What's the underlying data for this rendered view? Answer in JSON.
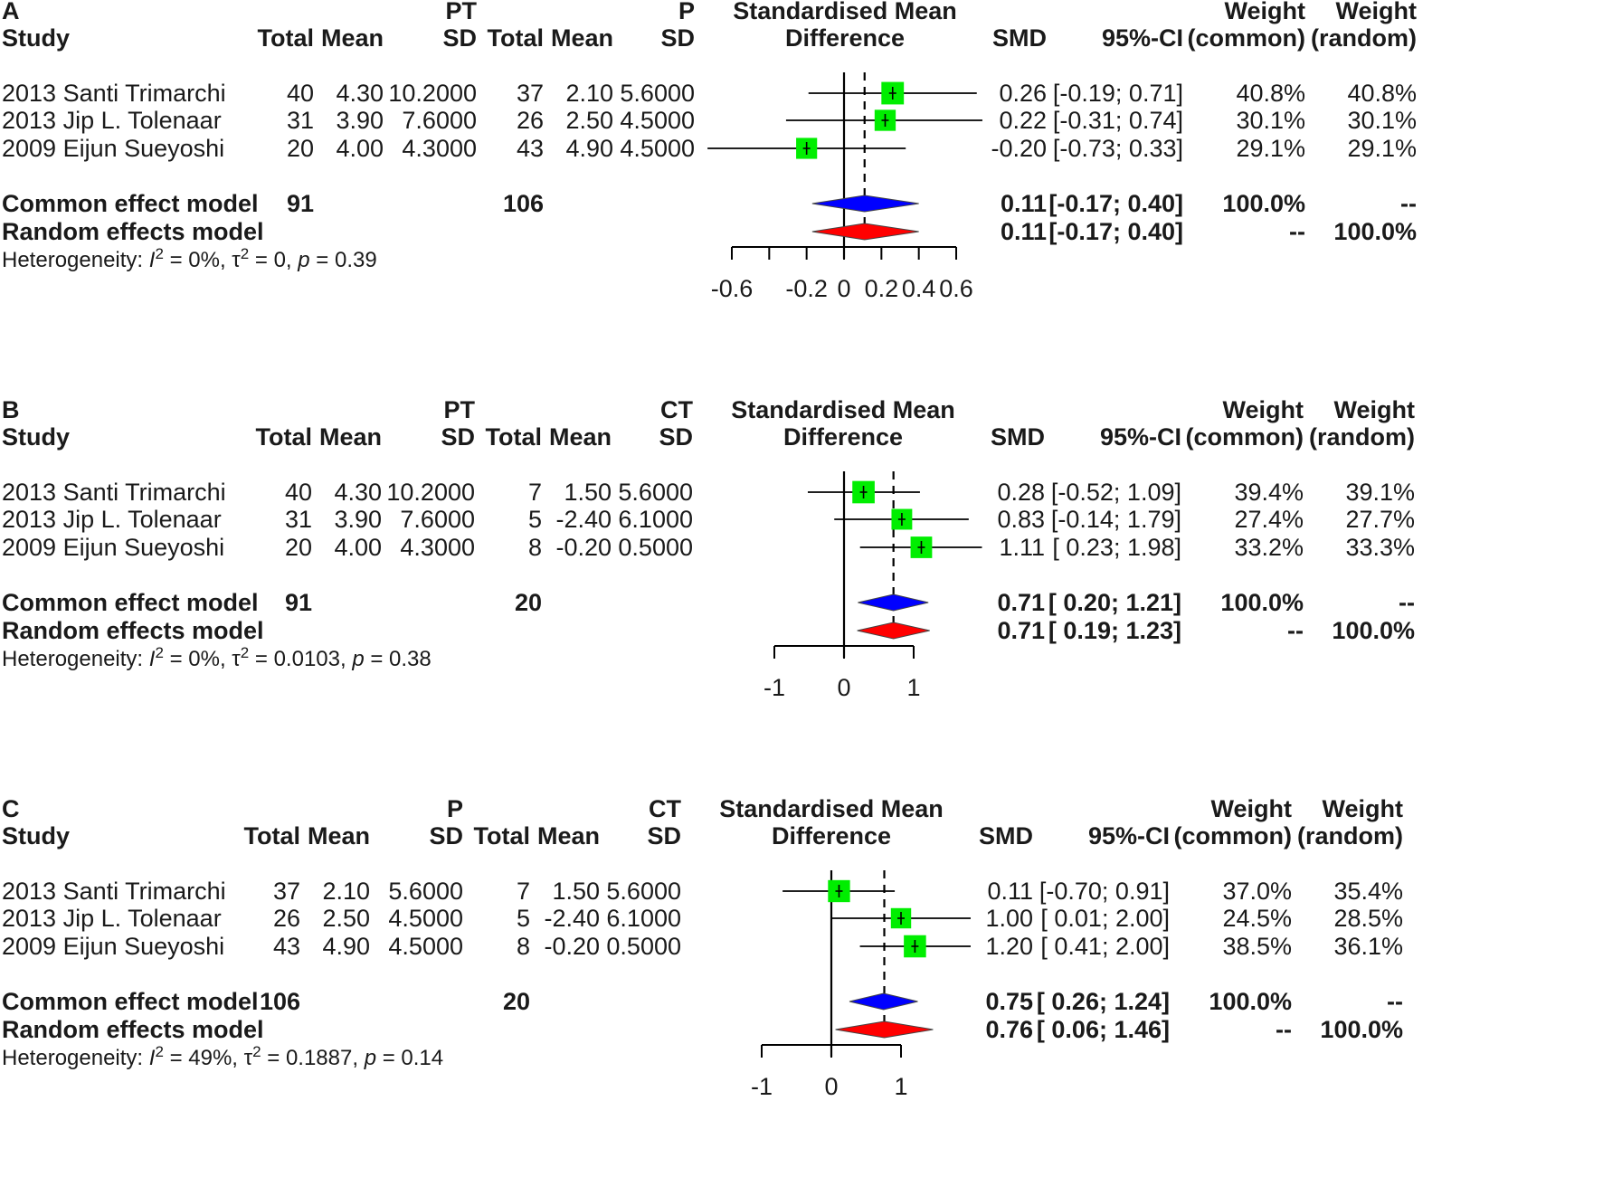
{
  "panels": [
    {
      "id": "A",
      "group1": "PT",
      "group2": "P",
      "headers": {
        "study": "Study",
        "total1": "Total",
        "mean1": "Mean",
        "sd1": "SD",
        "total2": "Total",
        "mean2": "Mean",
        "sd2": "SD",
        "smd_line1": "Standardised Mean",
        "smd_line2": "Difference",
        "smd": "SMD",
        "ci": "95%-CI",
        "w_common_1": "Weight",
        "w_common_2": "(common)",
        "w_random_1": "Weight",
        "w_random_2": "(random)"
      },
      "rows": [
        {
          "study": "2013 Santi Trimarchi",
          "total1": "40",
          "mean1": "4.30",
          "sd1": "10.2000",
          "total2": "37",
          "mean2": "2.10",
          "sd2": "5.6000",
          "smd": "0.26",
          "ci": "[-0.19; 0.71]",
          "w_common": "40.8%",
          "w_random": "40.8%"
        },
        {
          "study": "2013 Jip L. Tolenaar",
          "total1": "31",
          "mean1": "3.90",
          "sd1": "7.6000",
          "total2": "26",
          "mean2": "2.50",
          "sd2": "4.5000",
          "smd": "0.22",
          "ci": "[-0.31; 0.74]",
          "w_common": "30.1%",
          "w_random": "30.1%"
        },
        {
          "study": "2009 Eijun Sueyoshi",
          "total1": "20",
          "mean1": "4.00",
          "sd1": "4.3000",
          "total2": "43",
          "mean2": "4.90",
          "sd2": "4.5000",
          "smd": "-0.20",
          "ci": "[-0.73; 0.33]",
          "w_common": "29.1%",
          "w_random": "29.1%"
        }
      ],
      "common": {
        "label": "Common effect model",
        "total1": "91",
        "total2": "106",
        "smd": "0.11",
        "ci": "[-0.17; 0.40]",
        "w_common": "100.0%",
        "w_random": "--"
      },
      "random": {
        "label": "Random effects model",
        "smd": "0.11",
        "ci": "[-0.17; 0.40]",
        "w_common": "--",
        "w_random": "100.0%"
      },
      "het": {
        "prefix": "Heterogeneity: ",
        "I": "I",
        "I_exp": "2",
        "I_val": " = 0%, ",
        "tau": "τ",
        "tau_exp": "2",
        "tau_val": " = 0, ",
        "p": "p",
        "p_val": " = 0.39"
      }
    },
    {
      "id": "B",
      "group1": "PT",
      "group2": "CT",
      "headers": {
        "study": "Study",
        "total1": "Total",
        "mean1": "Mean",
        "sd1": "SD",
        "total2": "Total",
        "mean2": "Mean",
        "sd2": "SD",
        "smd_line1": "Standardised Mean",
        "smd_line2": "Difference",
        "smd": "SMD",
        "ci": "95%-CI",
        "w_common_1": "Weight",
        "w_common_2": "(common)",
        "w_random_1": "Weight",
        "w_random_2": "(random)"
      },
      "rows": [
        {
          "study": "2013 Santi Trimarchi",
          "total1": "40",
          "mean1": "4.30",
          "sd1": "10.2000",
          "total2": "7",
          "mean2": "1.50",
          "sd2": "5.6000",
          "smd": "0.28",
          "ci": "[-0.52; 1.09]",
          "w_common": "39.4%",
          "w_random": "39.1%"
        },
        {
          "study": "2013 Jip L. Tolenaar",
          "total1": "31",
          "mean1": "3.90",
          "sd1": "7.6000",
          "total2": "5",
          "mean2": "-2.40",
          "sd2": "6.1000",
          "smd": "0.83",
          "ci": "[-0.14; 1.79]",
          "w_common": "27.4%",
          "w_random": "27.7%"
        },
        {
          "study": "2009 Eijun Sueyoshi",
          "total1": "20",
          "mean1": "4.00",
          "sd1": "4.3000",
          "total2": "8",
          "mean2": "-0.20",
          "sd2": "0.5000",
          "smd": "1.11",
          "ci": "[ 0.23; 1.98]",
          "w_common": "33.2%",
          "w_random": "33.3%"
        }
      ],
      "common": {
        "label": "Common effect model",
        "total1": "91",
        "total2": "20",
        "smd": "0.71",
        "ci": "[ 0.20; 1.21]",
        "w_common": "100.0%",
        "w_random": "--"
      },
      "random": {
        "label": "Random effects model",
        "smd": "0.71",
        "ci": "[ 0.19; 1.23]",
        "w_common": "--",
        "w_random": "100.0%"
      },
      "het": {
        "prefix": "Heterogeneity: ",
        "I": "I",
        "I_exp": "2",
        "I_val": " = 0%, ",
        "tau": "τ",
        "tau_exp": "2",
        "tau_val": " = 0.0103, ",
        "p": "p",
        "p_val": " = 0.38"
      }
    },
    {
      "id": "C",
      "group1": "P",
      "group2": "CT",
      "headers": {
        "study": "Study",
        "total1": "Total",
        "mean1": "Mean",
        "sd1": "SD",
        "total2": "Total",
        "mean2": "Mean",
        "sd2": "SD",
        "smd_line1": "Standardised Mean",
        "smd_line2": "Difference",
        "smd": "SMD",
        "ci": "95%-CI",
        "w_common_1": "Weight",
        "w_common_2": "(common)",
        "w_random_1": "Weight",
        "w_random_2": "(random)"
      },
      "rows": [
        {
          "study": "2013 Santi Trimarchi",
          "total1": "37",
          "mean1": "2.10",
          "sd1": "5.6000",
          "total2": "7",
          "mean2": "1.50",
          "sd2": "5.6000",
          "smd": "0.11",
          "ci": "[-0.70; 0.91]",
          "w_common": "37.0%",
          "w_random": "35.4%"
        },
        {
          "study": "2013 Jip L. Tolenaar",
          "total1": "26",
          "mean1": "2.50",
          "sd1": "4.5000",
          "total2": "5",
          "mean2": "-2.40",
          "sd2": "6.1000",
          "smd": "1.00",
          "ci": "[ 0.01; 2.00]",
          "w_common": "24.5%",
          "w_random": "28.5%"
        },
        {
          "study": "2009 Eijun Sueyoshi",
          "total1": "43",
          "mean1": "4.90",
          "sd1": "4.5000",
          "total2": "8",
          "mean2": "-0.20",
          "sd2": "0.5000",
          "smd": "1.20",
          "ci": "[ 0.41; 2.00]",
          "w_common": "38.5%",
          "w_random": "36.1%"
        }
      ],
      "common": {
        "label": "Common effect model",
        "total1": "106",
        "total2": "20",
        "smd": "0.75",
        "ci": "[ 0.26; 1.24]",
        "w_common": "100.0%",
        "w_random": "--"
      },
      "random": {
        "label": "Random effects model",
        "smd": "0.76",
        "ci": "[ 0.06; 1.46]",
        "w_common": "--",
        "w_random": "100.0%"
      },
      "het": {
        "prefix": "Heterogeneity: ",
        "I": "I",
        "I_exp": "2",
        "I_val": " = 49%, ",
        "tau": "τ",
        "tau_exp": "2",
        "tau_val": " = 0.1887, ",
        "p": "p",
        "p_val": " = 0.14"
      }
    }
  ],
  "chart_data": [
    {
      "type": "forest",
      "panel": "A",
      "xlim": [
        -0.6,
        0.6
      ],
      "ticks": [
        -0.6,
        -0.4,
        -0.2,
        0,
        0.2,
        0.4,
        0.6
      ],
      "tick_labels": [
        "-0.6",
        "",
        "-0.2",
        "0",
        "0.2",
        "0.4",
        "0.6"
      ],
      "studies": [
        {
          "smd": 0.26,
          "lo": -0.19,
          "hi": 0.71,
          "weight": 40.8
        },
        {
          "smd": 0.22,
          "lo": -0.31,
          "hi": 0.74,
          "weight": 30.1
        },
        {
          "smd": -0.2,
          "lo": -0.73,
          "hi": 0.33,
          "weight": 29.1
        }
      ],
      "common": {
        "smd": 0.11,
        "lo": -0.17,
        "hi": 0.4
      },
      "random": {
        "smd": 0.11,
        "lo": -0.17,
        "hi": 0.4
      },
      "colors": {
        "square": "#00ee00",
        "common": "#0000ff",
        "random": "#ff0000",
        "line": "#000000"
      }
    },
    {
      "type": "forest",
      "panel": "B",
      "xlim": [
        -1,
        1
      ],
      "ticks": [
        -1,
        0,
        1
      ],
      "tick_labels": [
        "-1",
        "0",
        "1"
      ],
      "studies": [
        {
          "smd": 0.28,
          "lo": -0.52,
          "hi": 1.09,
          "weight": 39.4
        },
        {
          "smd": 0.83,
          "lo": -0.14,
          "hi": 1.79,
          "weight": 27.4
        },
        {
          "smd": 1.11,
          "lo": 0.23,
          "hi": 1.98,
          "weight": 33.2
        }
      ],
      "common": {
        "smd": 0.71,
        "lo": 0.2,
        "hi": 1.21
      },
      "random": {
        "smd": 0.71,
        "lo": 0.19,
        "hi": 1.23
      },
      "colors": {
        "square": "#00ee00",
        "common": "#0000ff",
        "random": "#ff0000",
        "line": "#000000"
      }
    },
    {
      "type": "forest",
      "panel": "C",
      "xlim": [
        -1,
        1
      ],
      "ticks": [
        -1,
        0,
        1
      ],
      "tick_labels": [
        "-1",
        "0",
        "1"
      ],
      "studies": [
        {
          "smd": 0.11,
          "lo": -0.7,
          "hi": 0.91,
          "weight": 37.0
        },
        {
          "smd": 1.0,
          "lo": 0.01,
          "hi": 2.0,
          "weight": 24.5
        },
        {
          "smd": 1.2,
          "lo": 0.41,
          "hi": 2.0,
          "weight": 38.5
        }
      ],
      "common": {
        "smd": 0.75,
        "lo": 0.26,
        "hi": 1.24
      },
      "random": {
        "smd": 0.76,
        "lo": 0.06,
        "hi": 1.46
      },
      "colors": {
        "square": "#00ee00",
        "common": "#0000ff",
        "random": "#ff0000",
        "line": "#000000"
      }
    }
  ]
}
